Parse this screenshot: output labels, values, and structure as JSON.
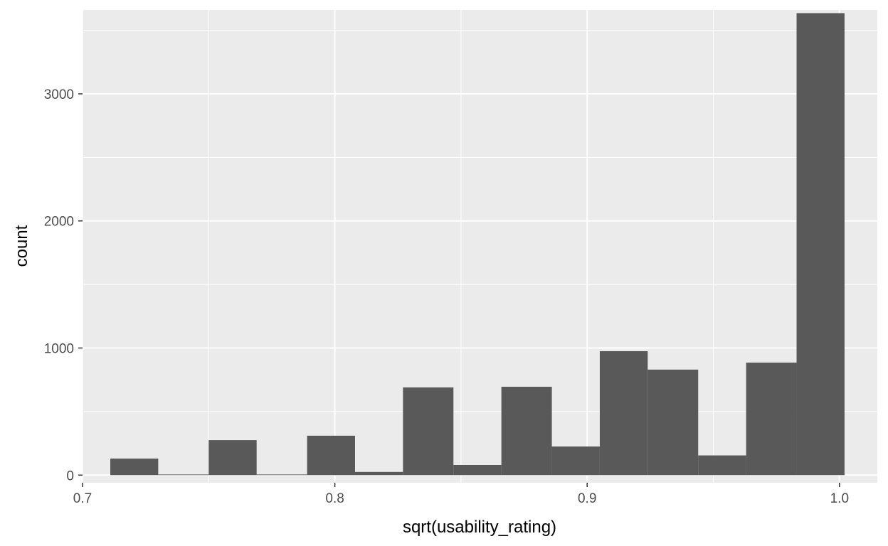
{
  "chart_data": {
    "type": "bar",
    "subtype": "histogram",
    "title": "",
    "xlabel": "sqrt(usability_rating)",
    "ylabel": "count",
    "xlim": [
      0.7,
      1.015
    ],
    "ylim": [
      -60,
      3660
    ],
    "x_ticks": [
      0.7,
      0.8,
      0.9,
      1.0
    ],
    "x_tick_labels": [
      "0.7",
      "0.8",
      "0.9",
      "1.0"
    ],
    "y_ticks": [
      0,
      1000,
      2000,
      3000
    ],
    "y_tick_labels": [
      "0",
      "1000",
      "2000",
      "3000"
    ],
    "bin_width": 0.0194,
    "bins": [
      {
        "x_start": 0.711,
        "x_end": 0.73,
        "count": 130
      },
      {
        "x_start": 0.73,
        "x_end": 0.75,
        "count": 5
      },
      {
        "x_start": 0.75,
        "x_end": 0.769,
        "count": 275
      },
      {
        "x_start": 0.769,
        "x_end": 0.789,
        "count": 5
      },
      {
        "x_start": 0.789,
        "x_end": 0.808,
        "count": 310
      },
      {
        "x_start": 0.808,
        "x_end": 0.827,
        "count": 25
      },
      {
        "x_start": 0.827,
        "x_end": 0.847,
        "count": 690
      },
      {
        "x_start": 0.847,
        "x_end": 0.866,
        "count": 80
      },
      {
        "x_start": 0.866,
        "x_end": 0.886,
        "count": 695
      },
      {
        "x_start": 0.886,
        "x_end": 0.905,
        "count": 225
      },
      {
        "x_start": 0.905,
        "x_end": 0.924,
        "count": 975
      },
      {
        "x_start": 0.924,
        "x_end": 0.944,
        "count": 830
      },
      {
        "x_start": 0.944,
        "x_end": 0.963,
        "count": 155
      },
      {
        "x_start": 0.963,
        "x_end": 0.983,
        "count": 885
      },
      {
        "x_start": 0.983,
        "x_end": 1.002,
        "count": 3635
      }
    ],
    "grid": true,
    "colors": {
      "panel_background": "#ebebeb",
      "grid_major": "#ffffff",
      "bar_fill": "#595959",
      "tick_color": "#333333"
    }
  }
}
